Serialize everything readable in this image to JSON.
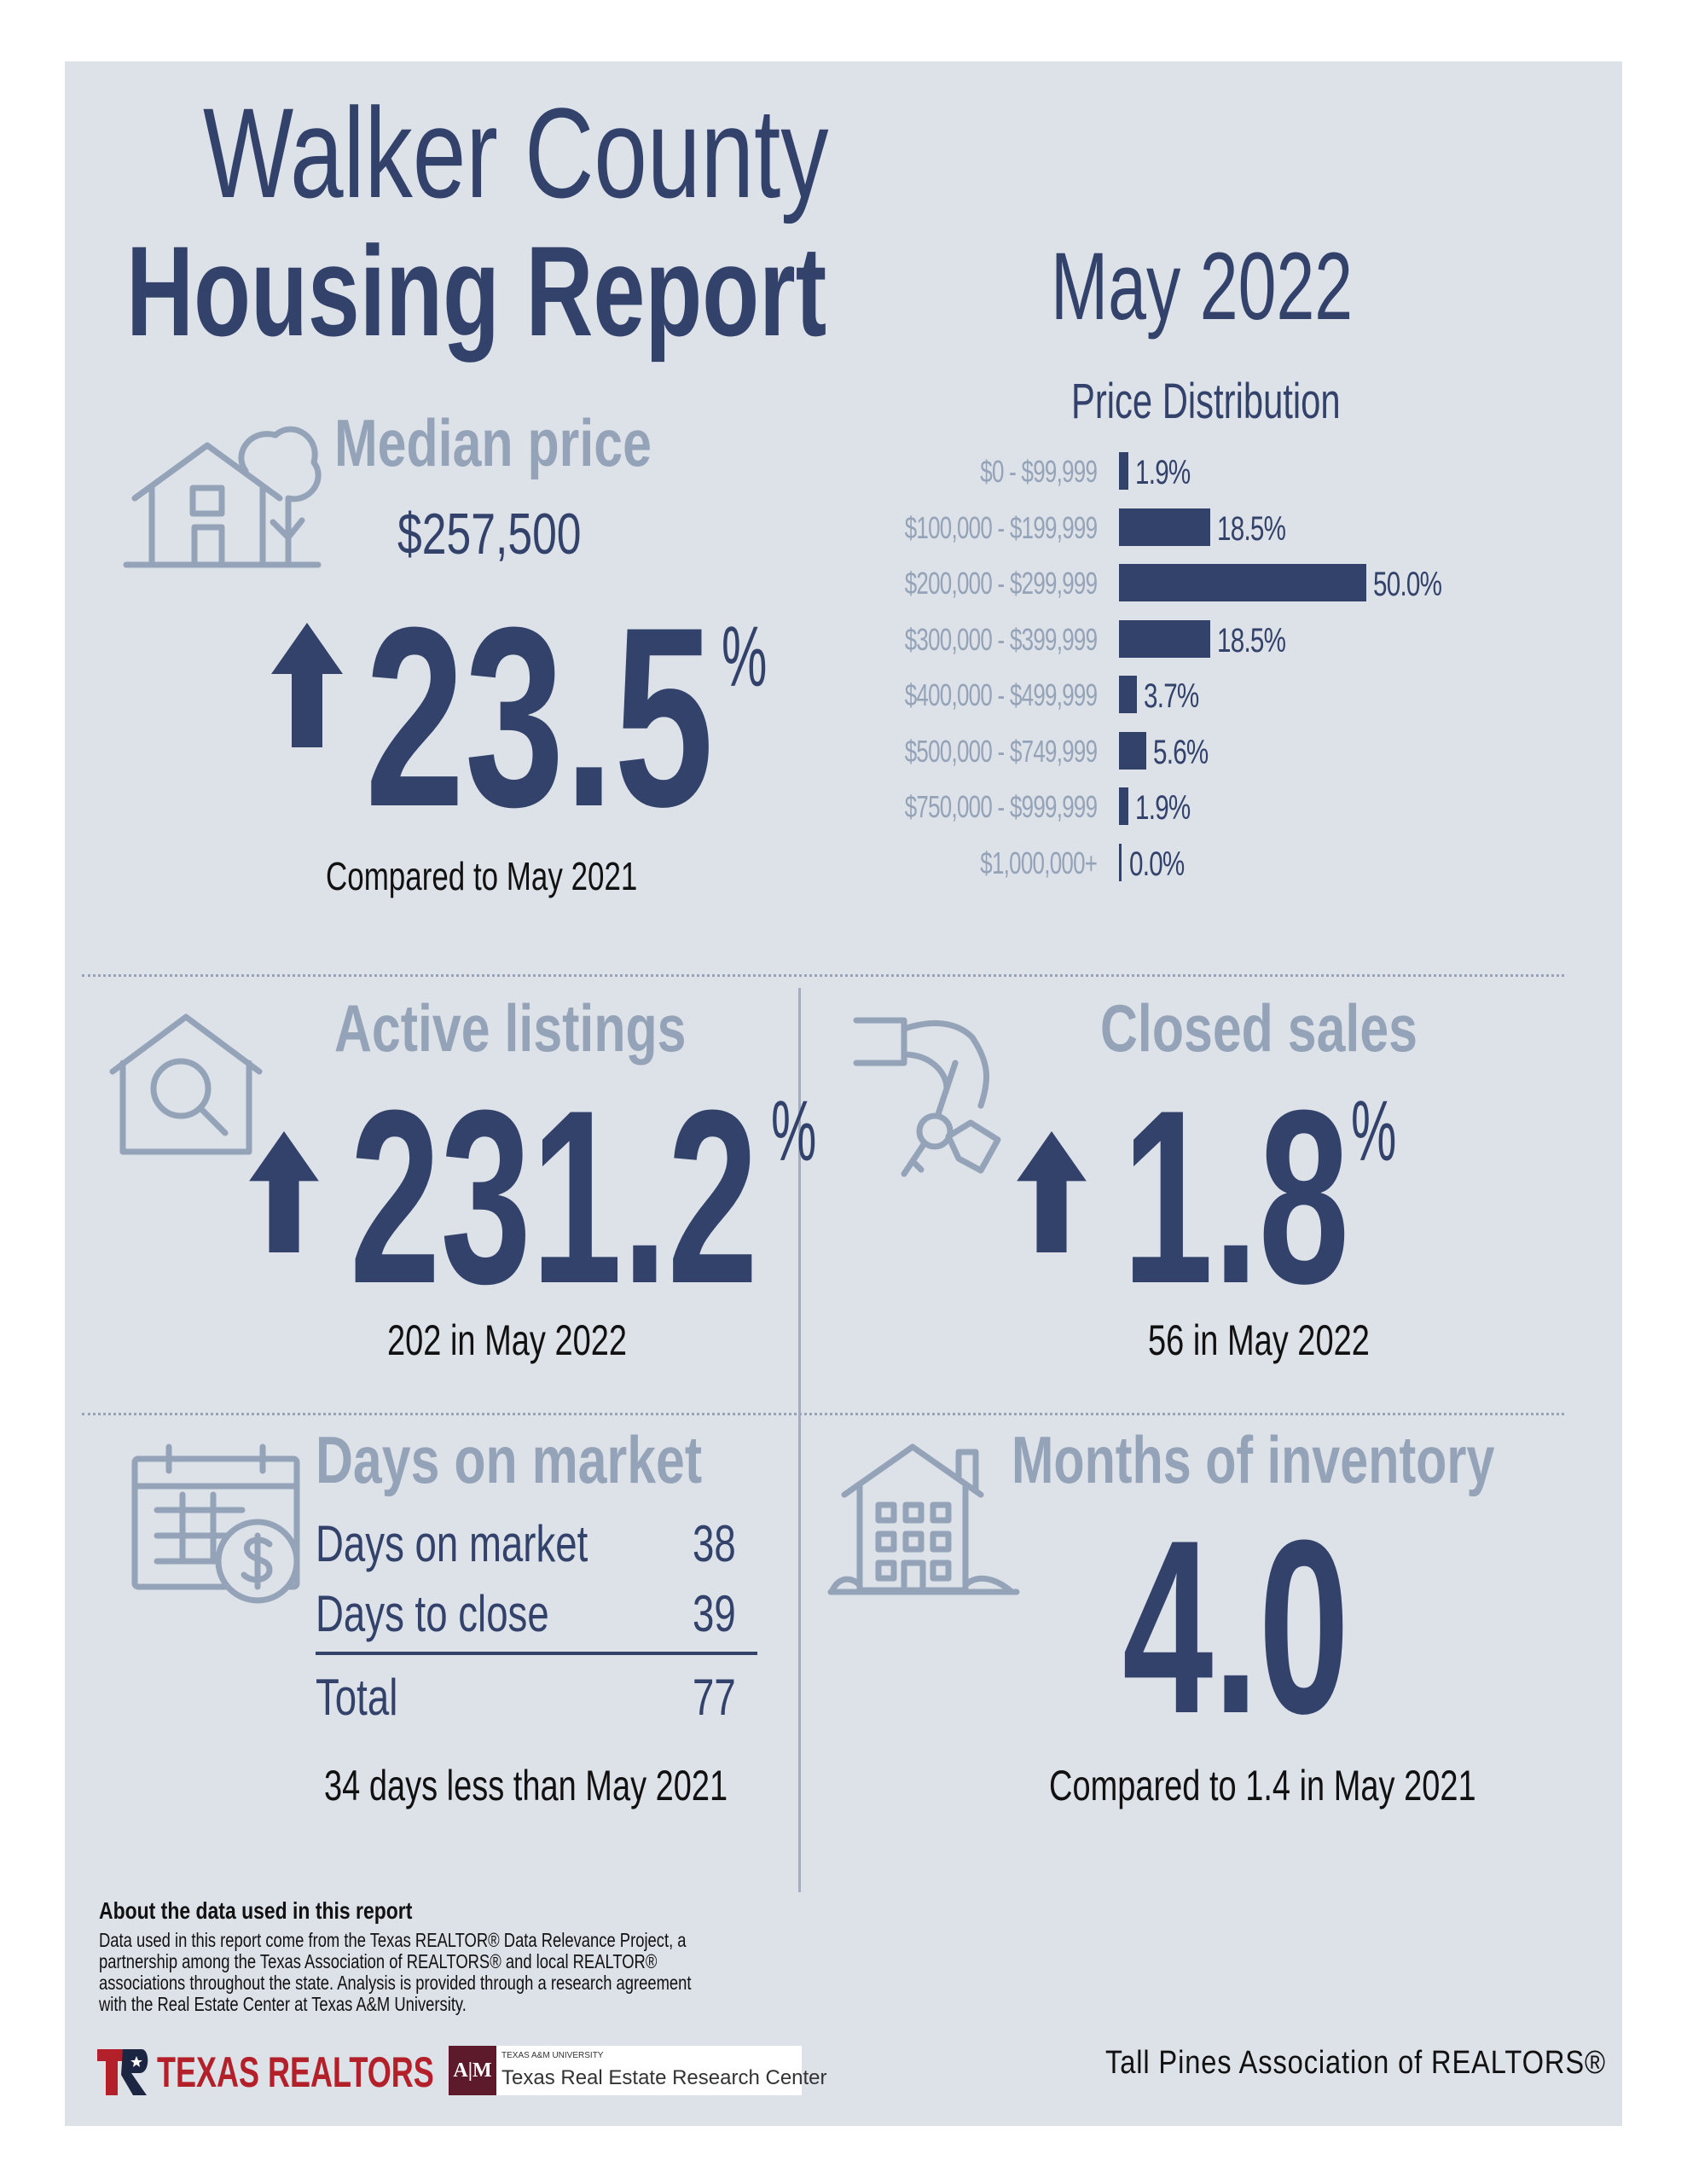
{
  "header": {
    "title_line1": "Walker County",
    "title_line2": "Housing Report",
    "period": "May 2022"
  },
  "median_price": {
    "heading": "Median price",
    "value": "$257,500",
    "change": "23.5",
    "percent_sign": "%",
    "comparison": "Compared to May 2021",
    "icon": "house-tree-icon"
  },
  "price_distribution": {
    "heading": "Price Distribution",
    "chart_data": {
      "type": "bar",
      "orientation": "horizontal",
      "title": "Price Distribution",
      "categories": [
        "$0 - $99,999",
        "$100,000 - $199,999",
        "$200,000 - $299,999",
        "$300,000 - $399,999",
        "$400,000 - $499,999",
        "$500,000 - $749,999",
        "$750,000 - $999,999",
        "$1,000,000+"
      ],
      "values": [
        1.9,
        18.5,
        50.0,
        18.5,
        3.7,
        5.6,
        1.9,
        0.0
      ],
      "value_labels": [
        "1.9%",
        "18.5%",
        "50.0%",
        "18.5%",
        "3.7%",
        "5.6%",
        "1.9%",
        "0.0%"
      ],
      "xlim": [
        0,
        50
      ],
      "grid": false,
      "color": "#32426b"
    }
  },
  "active_listings": {
    "heading": "Active listings",
    "change": "231.2",
    "percent_sign": "%",
    "note": "202 in May 2022",
    "icon": "house-search-icon"
  },
  "closed_sales": {
    "heading": "Closed sales",
    "change": "1.8",
    "percent_sign": "%",
    "note": "56 in May 2022",
    "icon": "hand-keys-icon"
  },
  "days_on_market": {
    "heading": "Days on market",
    "rows": [
      {
        "label": "Days on market",
        "value": "38"
      },
      {
        "label": "Days to close",
        "value": "39"
      }
    ],
    "total_label": "Total",
    "total_value": "77",
    "note": "34 days less than May 2021",
    "icon": "calendar-dollar-icon"
  },
  "months_inventory": {
    "heading": "Months of inventory",
    "value": "4.0",
    "note": "Compared to 1.4 in May 2021",
    "icon": "apartment-building-icon"
  },
  "footer": {
    "about_heading": "About the data used in this report",
    "about_lines": [
      "Data used in this report come from the Texas REALTOR® Data Relevance Project, a",
      "partnership among the Texas Association of REALTORS® and local REALTOR®",
      "associations throughout the state. Analysis is provided through a research agreement",
      "with the Real Estate Center at Texas A&M University."
    ],
    "logo_texas_realtors": "TEXAS REALTORS",
    "logo_tamu_small": "TEXAS A&M UNIVERSITY",
    "logo_tamu_main": "Texas Real Estate Research Center",
    "association": "Tall Pines Association of REALTORS®"
  },
  "colors": {
    "navy": "#32426b",
    "grey": "#94a3b8",
    "panel": "#dde1e8"
  }
}
